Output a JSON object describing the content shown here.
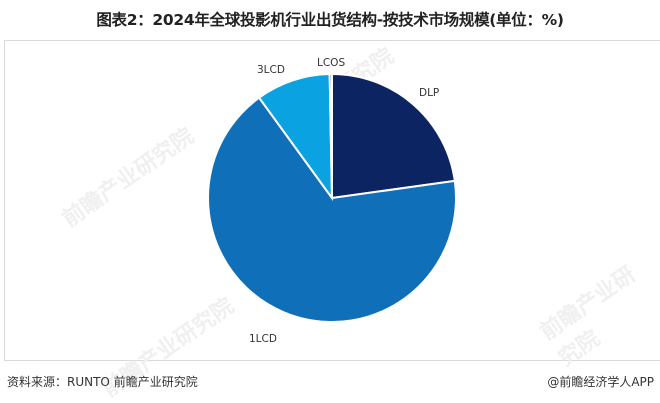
{
  "title": "图表2：2024年全球投影机行业出货结构-按技术市场规模(单位：%)",
  "footer": {
    "source": "资料来源：RUNTO 前瞻产业研究院",
    "credit": "@前瞻经济学人APP"
  },
  "watermark": "前瞻产业研究院",
  "chart_data": {
    "type": "pie",
    "title": "2024年全球投影机行业出货结构-按技术市场规模(单位：%)",
    "unit": "%",
    "start_angle": "12 o'clock, clockwise",
    "categories": [
      "DLP",
      "1LCD",
      "3LCD",
      "LCOS"
    ],
    "values": [
      22.8,
      67.2,
      9.7,
      0.3
    ],
    "colors": [
      "#0c2461",
      "#0f6fb8",
      "#0aa2e0",
      "#1a3a8a"
    ],
    "legend": "none (direct labels)"
  }
}
